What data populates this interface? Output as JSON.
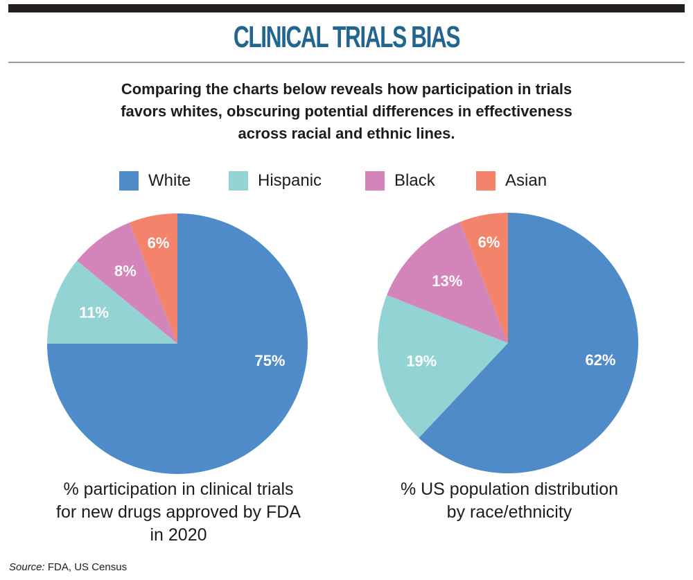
{
  "header": {
    "title": "CLINICAL TRIALS BIAS",
    "subtitle_lines": [
      "Comparing the charts below reveals how participation in trials",
      "favors whites, obscuring potential differences in effectiveness",
      "across racial and ethnic lines."
    ]
  },
  "legend": [
    {
      "label": "White",
      "color": "#4f8bc9"
    },
    {
      "label": "Hispanic",
      "color": "#93d3d4"
    },
    {
      "label": "Black",
      "color": "#d384b9"
    },
    {
      "label": "Asian",
      "color": "#f4836b"
    }
  ],
  "chart_data": [
    {
      "type": "pie",
      "title": "% participation in clinical trials for new drugs approved by FDA in 2020",
      "caption_lines": [
        "% participation in clinical trials",
        "for new drugs approved by FDA",
        "in 2020"
      ],
      "start_angle": "12 o'clock, clockwise",
      "slices": [
        {
          "label": "White",
          "value": 75,
          "display": "75%",
          "color": "#4f8bc9"
        },
        {
          "label": "Hispanic",
          "value": 11,
          "display": "11%",
          "color": "#93d3d4"
        },
        {
          "label": "Black",
          "value": 8,
          "display": "8%",
          "color": "#d384b9"
        },
        {
          "label": "Asian",
          "value": 6,
          "display": "6%",
          "color": "#f4836b"
        }
      ]
    },
    {
      "type": "pie",
      "title": "% US population distribution by race/ethnicity",
      "caption_lines": [
        "% US population distribution",
        "by race/ethnicity"
      ],
      "start_angle": "12 o'clock, clockwise",
      "slices": [
        {
          "label": "White",
          "value": 62,
          "display": "62%",
          "color": "#4f8bc9"
        },
        {
          "label": "Hispanic",
          "value": 19,
          "display": "19%",
          "color": "#93d3d4"
        },
        {
          "label": "Black",
          "value": 13,
          "display": "13%",
          "color": "#d384b9"
        },
        {
          "label": "Asian",
          "value": 6,
          "display": "6%",
          "color": "#f4836b"
        }
      ]
    }
  ],
  "footer": {
    "source_label": "Source:",
    "source_text": " FDA, US Census"
  }
}
